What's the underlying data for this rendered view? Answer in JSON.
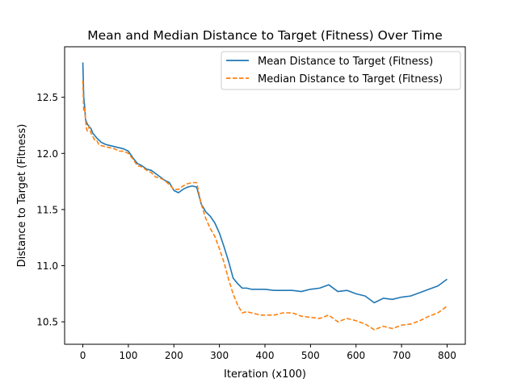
{
  "chart_data": {
    "type": "line",
    "title": "Mean and Median Distance to Target (Fitness) Over Time",
    "xlabel": "Iteration (x100)",
    "ylabel": "Distance to Target (Fitness)",
    "xlim": [
      -40,
      840
    ],
    "ylim": [
      10.3,
      12.95
    ],
    "xticks": [
      0,
      100,
      200,
      300,
      400,
      500,
      600,
      700,
      800
    ],
    "yticks": [
      10.5,
      11.0,
      11.5,
      12.0,
      12.5
    ],
    "ytick_labels": [
      "10.5",
      "11.0",
      "11.5",
      "12.0",
      "12.5"
    ],
    "grid": false,
    "legend": "top-right",
    "series": [
      {
        "name": "Mean Distance to Target (Fitness)",
        "color": "#1f77b4",
        "style": "solid",
        "x": [
          0,
          2,
          4,
          6,
          8,
          10,
          14,
          18,
          22,
          26,
          30,
          35,
          40,
          50,
          60,
          70,
          80,
          90,
          100,
          110,
          120,
          130,
          140,
          150,
          160,
          170,
          180,
          190,
          200,
          210,
          220,
          230,
          240,
          250,
          260,
          270,
          280,
          290,
          300,
          310,
          320,
          330,
          340,
          350,
          360,
          370,
          380,
          390,
          400,
          420,
          440,
          460,
          480,
          500,
          520,
          540,
          560,
          580,
          600,
          620,
          640,
          660,
          680,
          700,
          720,
          740,
          760,
          780,
          800
        ],
        "y": [
          12.81,
          12.5,
          12.42,
          12.3,
          12.28,
          12.26,
          12.24,
          12.22,
          12.18,
          12.16,
          12.14,
          12.12,
          12.1,
          12.08,
          12.07,
          12.06,
          12.05,
          12.04,
          12.02,
          11.96,
          11.91,
          11.89,
          11.86,
          11.85,
          11.82,
          11.79,
          11.76,
          11.74,
          11.67,
          11.65,
          11.68,
          11.7,
          11.71,
          11.7,
          11.55,
          11.48,
          11.44,
          11.38,
          11.29,
          11.17,
          11.04,
          10.89,
          10.84,
          10.8,
          10.8,
          10.79,
          10.79,
          10.79,
          10.79,
          10.78,
          10.78,
          10.78,
          10.77,
          10.79,
          10.8,
          10.83,
          10.77,
          10.78,
          10.75,
          10.73,
          10.67,
          10.71,
          10.7,
          10.72,
          10.73,
          10.76,
          10.79,
          10.82,
          10.88
        ]
      },
      {
        "name": "Median Distance to Target (Fitness)",
        "color": "#ff7f0e",
        "style": "dashed",
        "x": [
          0,
          2,
          4,
          6,
          8,
          10,
          14,
          18,
          22,
          26,
          30,
          35,
          40,
          50,
          60,
          70,
          80,
          90,
          100,
          110,
          120,
          130,
          140,
          150,
          160,
          170,
          180,
          190,
          200,
          210,
          220,
          230,
          240,
          250,
          260,
          270,
          280,
          290,
          300,
          310,
          320,
          330,
          340,
          350,
          360,
          370,
          380,
          390,
          400,
          420,
          440,
          460,
          480,
          500,
          520,
          540,
          560,
          580,
          600,
          620,
          640,
          660,
          680,
          700,
          720,
          740,
          760,
          780,
          800
        ],
        "y": [
          12.65,
          12.38,
          12.4,
          12.3,
          12.22,
          12.2,
          12.24,
          12.18,
          12.15,
          12.12,
          12.12,
          12.08,
          12.07,
          12.06,
          12.05,
          12.04,
          12.02,
          12.02,
          12.0,
          11.95,
          11.89,
          11.88,
          11.85,
          11.83,
          11.79,
          11.78,
          11.76,
          11.72,
          11.68,
          11.68,
          11.71,
          11.73,
          11.74,
          11.74,
          11.55,
          11.42,
          11.33,
          11.26,
          11.15,
          11.03,
          10.88,
          10.75,
          10.65,
          10.58,
          10.59,
          10.58,
          10.57,
          10.56,
          10.56,
          10.56,
          10.58,
          10.58,
          10.55,
          10.54,
          10.53,
          10.56,
          10.5,
          10.53,
          10.51,
          10.48,
          10.43,
          10.46,
          10.44,
          10.47,
          10.48,
          10.51,
          10.55,
          10.58,
          10.64
        ]
      }
    ]
  }
}
